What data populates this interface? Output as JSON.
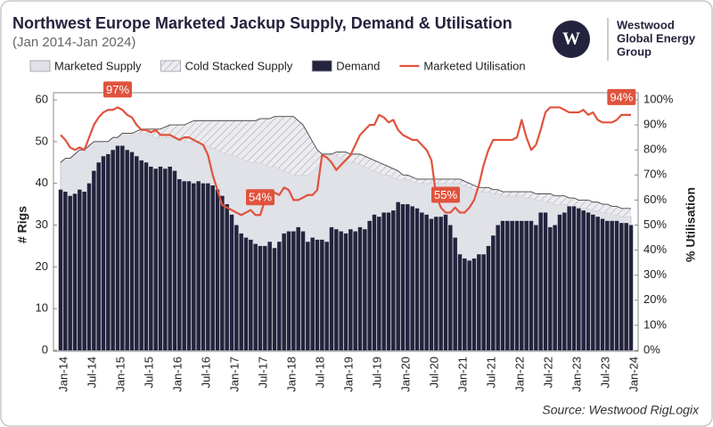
{
  "chart_data": {
    "type": "combo",
    "title": "Northwest Europe Marketed Jackup Supply, Demand & Utilisation",
    "subtitle": "(Jan 2014-Jan 2024)",
    "source": "Source: Westwood RigLogix",
    "logo": {
      "line1": "Westwood",
      "line2": "Global Energy",
      "line3": "Group",
      "mark": "W"
    },
    "y_label": "# Rigs",
    "y2_label": "% Utilisation",
    "categories": [
      "Jan-14",
      null,
      null,
      null,
      null,
      null,
      "Jul-14",
      null,
      null,
      null,
      null,
      null,
      "Jan-15",
      null,
      null,
      null,
      null,
      null,
      "Jul-15",
      null,
      null,
      null,
      null,
      null,
      "Jan-16",
      null,
      null,
      null,
      null,
      null,
      "Jul-16",
      null,
      null,
      null,
      null,
      null,
      "Jan-17",
      null,
      null,
      null,
      null,
      null,
      "Jul-17",
      null,
      null,
      null,
      null,
      null,
      "Jan-18",
      null,
      null,
      null,
      null,
      null,
      "Jul-18",
      null,
      null,
      null,
      null,
      null,
      "Jan-19",
      null,
      null,
      null,
      null,
      null,
      "Jul-19",
      null,
      null,
      null,
      null,
      null,
      "Jan-20",
      null,
      null,
      null,
      null,
      null,
      "Jul-20",
      null,
      null,
      null,
      null,
      null,
      "Jan-21",
      null,
      null,
      null,
      null,
      null,
      "Jul-21",
      null,
      null,
      null,
      null,
      null,
      "Jan-22",
      null,
      null,
      null,
      null,
      null,
      "Jul-22",
      null,
      null,
      null,
      null,
      null,
      "Jan-23",
      null,
      null,
      null,
      null,
      null,
      "Jul-23",
      null,
      null,
      null,
      null,
      null,
      "Jan-24"
    ],
    "series": [
      {
        "name": "Marketed Supply",
        "type": "area",
        "color": "#e1e1e8",
        "values": [
          45,
          46,
          46,
          47,
          48,
          48,
          49,
          50,
          50,
          50,
          50,
          51,
          51,
          52,
          52,
          52,
          52,
          52,
          52,
          51.5,
          51,
          51,
          51,
          51,
          51,
          50.5,
          50,
          50,
          50,
          50,
          49.5,
          49,
          48.5,
          48,
          47.5,
          47,
          47,
          46.5,
          46,
          45.5,
          45,
          45,
          45,
          44.5,
          44,
          44,
          43.5,
          43,
          42.5,
          42,
          42,
          42,
          42,
          43,
          44,
          46,
          47,
          47,
          46.5,
          46,
          45.5,
          45,
          45,
          44.5,
          44,
          43.5,
          43,
          42.5,
          42,
          42,
          41.5,
          41,
          41,
          41,
          40.5,
          40,
          40,
          40,
          40,
          40,
          40,
          40,
          40,
          40,
          40,
          39.5,
          39,
          38.5,
          38,
          38,
          38,
          37.5,
          37.5,
          37,
          37,
          37,
          37,
          37,
          36.5,
          36.5,
          36,
          36,
          35.5,
          35.5,
          35,
          35,
          35,
          34.5,
          34.5,
          34,
          34,
          34,
          33.5,
          33.5,
          33,
          33,
          32.5,
          32.5,
          32,
          32,
          32
        ]
      },
      {
        "name": "Cold Stacked Supply",
        "type": "stacked-area",
        "color": "#9a9aa6",
        "values": [
          0,
          0,
          0,
          0,
          0,
          0,
          0,
          0,
          0,
          0,
          0,
          0,
          0,
          0,
          0,
          0,
          0.5,
          1,
          1,
          1.5,
          2,
          2,
          2.5,
          3,
          3,
          3.5,
          4,
          4.5,
          5,
          5,
          5.5,
          6,
          6.5,
          7,
          7.5,
          8,
          8,
          8.5,
          9,
          9.5,
          10,
          10,
          10.5,
          11,
          11.5,
          12,
          12.5,
          13,
          13.5,
          14,
          13,
          12,
          10,
          7,
          4,
          1,
          0,
          0,
          1,
          1.5,
          2,
          2,
          2,
          2.5,
          2.5,
          2.5,
          2.5,
          2.5,
          2.5,
          2,
          2,
          2,
          1,
          1,
          1,
          1,
          1,
          1,
          1,
          1,
          1,
          1,
          1,
          1,
          1,
          1,
          1,
          1,
          1,
          1,
          1,
          1,
          1,
          1,
          1,
          1,
          1,
          1,
          1.5,
          1.5,
          1.5,
          1.5,
          2,
          2,
          2,
          2,
          2,
          2,
          2,
          2,
          2,
          2,
          2,
          2,
          2,
          2,
          2,
          2,
          2,
          2,
          2
        ]
      },
      {
        "name": "Demand",
        "type": "bar",
        "color": "#23233d",
        "values": [
          38.5,
          38,
          37,
          37.5,
          38.5,
          38,
          40,
          43,
          45,
          46.5,
          47,
          48,
          49,
          49,
          48,
          47.5,
          46.5,
          45.5,
          45,
          44,
          43.5,
          44,
          43.5,
          44,
          43,
          41,
          40.5,
          40.5,
          40,
          40.5,
          40,
          40,
          39.5,
          38.5,
          37,
          35,
          32.5,
          30,
          28,
          27,
          26.5,
          25.5,
          25,
          25,
          26,
          24.5,
          26,
          28,
          28.5,
          28.5,
          29.5,
          28.5,
          26,
          27,
          26.5,
          26.5,
          26,
          29.5,
          29,
          28.5,
          28,
          29,
          28.5,
          29.5,
          29,
          31,
          32.5,
          32,
          33,
          33,
          33.5,
          35.5,
          35,
          35,
          34.5,
          34,
          33,
          32.5,
          31.5,
          32,
          32,
          32.5,
          30,
          27,
          23,
          22,
          21.5,
          22,
          23,
          23,
          25,
          27.5,
          30,
          31,
          31,
          31,
          31,
          31,
          31,
          31,
          30,
          33,
          33,
          29.5,
          30,
          32.5,
          33,
          34.5,
          34.5,
          34,
          33.5,
          33,
          32.5,
          32,
          31.5,
          31,
          31,
          31,
          30.5,
          30.5,
          30
        ]
      },
      {
        "name": "Marketed Utilisation",
        "type": "line",
        "axis": "y2",
        "color": "#e0533d",
        "values": [
          86,
          84,
          81,
          80,
          81,
          80,
          85,
          90,
          93,
          95,
          96,
          96,
          97,
          96,
          94,
          93,
          90,
          88,
          88,
          87,
          88,
          86,
          86,
          86,
          85,
          84,
          85,
          85,
          84,
          83,
          82,
          78,
          70,
          64,
          58,
          57,
          56,
          55,
          54,
          55,
          56,
          54,
          54,
          60,
          62,
          63,
          62,
          65,
          64,
          60,
          60,
          61,
          62,
          62,
          64,
          78,
          77,
          75,
          72,
          74,
          76,
          78,
          82,
          86,
          88,
          90,
          90,
          94,
          93,
          91,
          92,
          88,
          86,
          85,
          84,
          84,
          82,
          80,
          76,
          62,
          57,
          55,
          55,
          57,
          55,
          55,
          57,
          60,
          66,
          74,
          80,
          84,
          84,
          84,
          84,
          84,
          85,
          92,
          85,
          80,
          82,
          88,
          95,
          97,
          97,
          97,
          96,
          95,
          95,
          95,
          96,
          94,
          95,
          92,
          91,
          91,
          91,
          92,
          94,
          94,
          94
        ],
        "value_labels": [
          null,
          null,
          null,
          null,
          null,
          null,
          null,
          null,
          null,
          null,
          null,
          null,
          "97%",
          null,
          null,
          null,
          null,
          null,
          null,
          null,
          null,
          null,
          null,
          null,
          null,
          null,
          null,
          null,
          null,
          null,
          null,
          null,
          null,
          null,
          null,
          null,
          null,
          null,
          null,
          null,
          null,
          null,
          "54%",
          null,
          null,
          null,
          null,
          null,
          null,
          null,
          null,
          null,
          null,
          null,
          null,
          null,
          null,
          null,
          null,
          null,
          null,
          null,
          null,
          null,
          null,
          null,
          null,
          null,
          null,
          null,
          null,
          null,
          null,
          null,
          null,
          null,
          null,
          null,
          null,
          null,
          null,
          "55%",
          null,
          null,
          null,
          null,
          null,
          null,
          null,
          null,
          null,
          null,
          null,
          null,
          null,
          null,
          null,
          null,
          null,
          null,
          null,
          null,
          null,
          null,
          null,
          null,
          null,
          null,
          null,
          null,
          null,
          null,
          null,
          null,
          null,
          null,
          null,
          null,
          "94%",
          null,
          null
        ]
      }
    ],
    "ylim": [
      0,
      60
    ],
    "yticks": [
      0,
      10,
      20,
      30,
      40,
      50,
      60
    ],
    "y2lim": [
      0,
      100
    ],
    "y2ticks": [
      {
        "value": 0,
        "label": "0%"
      },
      {
        "value": 10,
        "label": "10%"
      },
      {
        "value": 20,
        "label": "20%"
      },
      {
        "value": 30,
        "label": "30%"
      },
      {
        "value": 40,
        "label": "40%"
      },
      {
        "value": 50,
        "label": "50%"
      },
      {
        "value": 60,
        "label": "60%"
      },
      {
        "value": 70,
        "label": "70%"
      },
      {
        "value": 80,
        "label": "80%"
      },
      {
        "value": 90,
        "label": "90%"
      },
      {
        "value": 100,
        "label": "100%"
      }
    ],
    "grid": false,
    "legend": "top"
  }
}
